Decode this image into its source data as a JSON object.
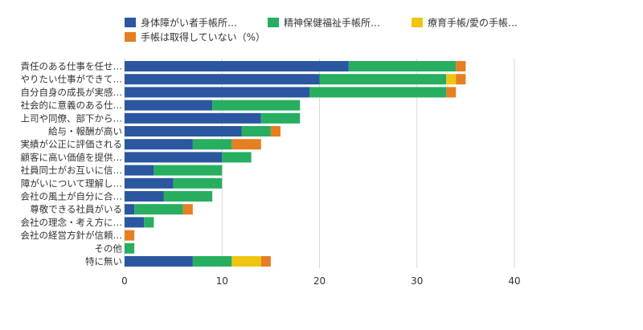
{
  "chart_data": {
    "type": "bar",
    "orientation": "horizontal",
    "stacked": true,
    "unit": "%",
    "categories": [
      "責任のある仕事を任せ…",
      "やりたい仕事ができて…",
      "自分自身の成長が実感…",
      "社会的に意義のある仕…",
      "上司や同僚、部下から…",
      "給与・報酬が高い",
      "実績が公正に評価される",
      "顧客に高い価値を提供…",
      "社員同士がお互いに信…",
      "障がいについて理解し…",
      "会社の風土が自分に合…",
      "尊敬できる社員がいる",
      "会社の理念・考え方に…",
      "会社の経営方針が信頼…",
      "その他",
      "特に無い"
    ],
    "series": [
      {
        "name": "身体障がい者手帳所…",
        "color": "#2b56a0",
        "values": [
          23,
          20,
          19,
          9,
          14,
          12,
          7,
          10,
          3,
          5,
          4,
          1,
          2,
          0,
          0,
          7
        ]
      },
      {
        "name": "精神保健福祉手帳所…",
        "color": "#27ae60",
        "values": [
          11,
          13,
          14,
          9,
          4,
          3,
          4,
          3,
          7,
          5,
          5,
          5,
          1,
          0,
          1,
          4
        ]
      },
      {
        "name": "療育手帳/愛の手帳…",
        "color": "#f1c40f",
        "values": [
          0,
          1,
          0,
          0,
          0,
          0,
          0,
          0,
          0,
          0,
          0,
          0,
          0,
          0,
          0,
          3
        ]
      },
      {
        "name": "手帳は取得していない（%）",
        "color": "#e67e22",
        "values": [
          1,
          1,
          1,
          0,
          0,
          1,
          3,
          0,
          0,
          0,
          0,
          1,
          0,
          1,
          0,
          1
        ]
      }
    ],
    "xlim": [
      0,
      40
    ],
    "xticks": [
      "0",
      "10",
      "20",
      "30",
      "40"
    ],
    "grid": true,
    "legend_position": "top"
  }
}
